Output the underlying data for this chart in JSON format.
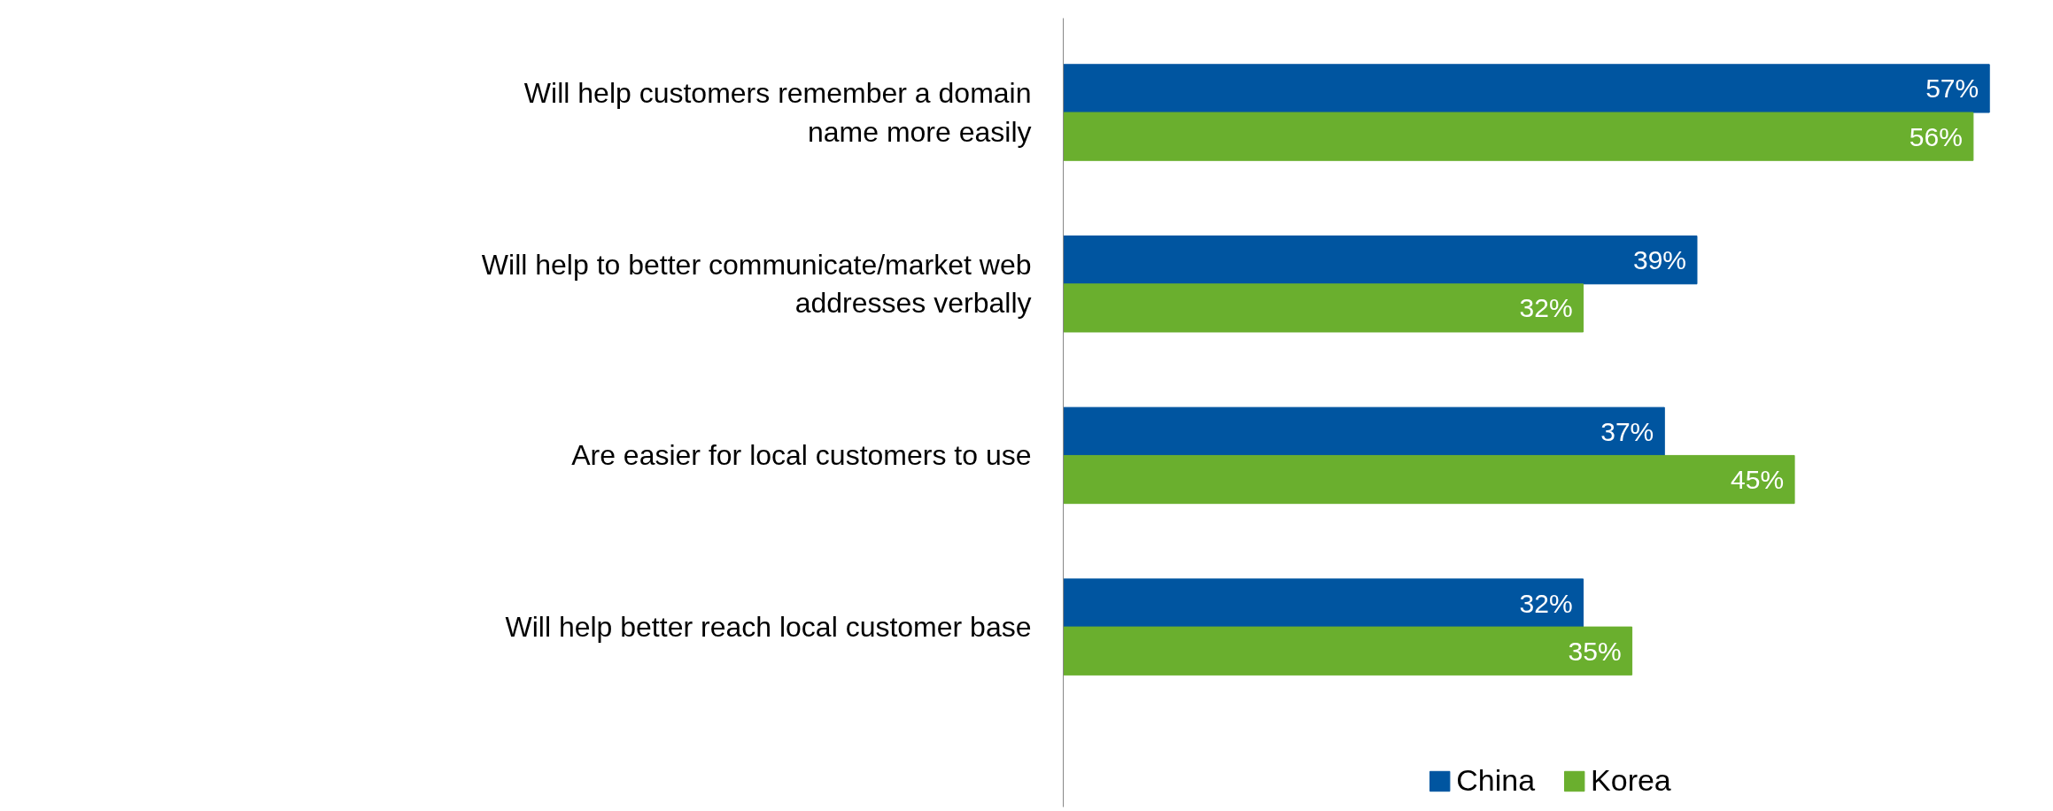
{
  "chart_data": {
    "type": "bar",
    "orientation": "horizontal",
    "categories": [
      "Will help customers remember a domain\nname more easily",
      "Will help to better communicate/market web\naddresses verbally",
      "Are easier for local customers to use",
      "Will help better reach local customer base"
    ],
    "series": [
      {
        "name": "China",
        "color": "#0055a0",
        "values": [
          57,
          39,
          37,
          32
        ],
        "value_labels": [
          "57%",
          "39%",
          "37%",
          "32%"
        ]
      },
      {
        "name": "Korea",
        "color": "#6aaf2e",
        "values": [
          56,
          32,
          45,
          35
        ],
        "value_labels": [
          "56%",
          "32%",
          "45%",
          "35%"
        ]
      }
    ],
    "legend": "bottom",
    "grid": false
  }
}
